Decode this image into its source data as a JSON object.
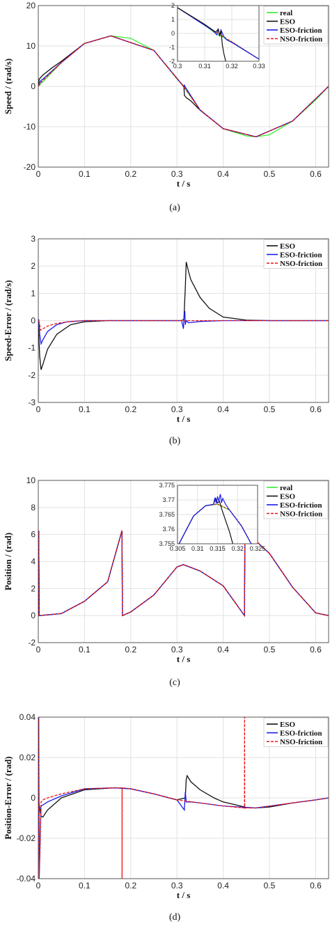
{
  "panels": [
    {
      "id": "a",
      "caption": "(a)",
      "ylabel": "Speed / (rad/s)",
      "xlabel": "t / s",
      "xlim": [
        0,
        0.628
      ],
      "ylim": [
        -20,
        20
      ],
      "xticks": [
        "0",
        "0.1",
        "0.2",
        "0.3",
        "0.4",
        "0.5",
        "0.6"
      ],
      "yticks": [
        "-20",
        "-10",
        "0",
        "10",
        "20"
      ],
      "legend": [
        "real",
        "ESO",
        "ESO-friction",
        "NSO-friction"
      ],
      "inset": {
        "xlim": [
          0.3,
          0.33
        ],
        "ylim": [
          -2,
          2
        ],
        "xticks": [
          "0.3",
          "0.31",
          "0.32",
          "0.33"
        ],
        "yticks": [
          "-2",
          "-1",
          "0",
          "1",
          "2"
        ]
      }
    },
    {
      "id": "b",
      "caption": "(b)",
      "ylabel": "Speed-Error / (rad/s)",
      "xlabel": "t / s",
      "xlim": [
        0,
        0.628
      ],
      "ylim": [
        -3,
        3
      ],
      "xticks": [
        "0",
        "0.1",
        "0.2",
        "0.3",
        "0.4",
        "0.5",
        "0.6"
      ],
      "yticks": [
        "-3",
        "-2",
        "-1",
        "0",
        "1",
        "2",
        "3"
      ],
      "legend": [
        "ESO",
        "ESO-friction",
        "NSO-friction"
      ]
    },
    {
      "id": "c",
      "caption": "(c)",
      "ylabel": "Position / (rad)",
      "xlabel": "t / s",
      "xlim": [
        0,
        0.628
      ],
      "ylim": [
        -2,
        10
      ],
      "xticks": [
        "0",
        "0.1",
        "0.2",
        "0.3",
        "0.4",
        "0.5",
        "0.6"
      ],
      "yticks": [
        "-2",
        "0",
        "2",
        "4",
        "6",
        "8",
        "10"
      ],
      "legend": [
        "real",
        "ESO",
        "ESO-friction",
        "NSO-friction"
      ],
      "inset": {
        "xlim": [
          0.305,
          0.325
        ],
        "ylim": [
          3.755,
          3.775
        ],
        "xticks": [
          "0.305",
          "0.31",
          "0.315",
          "0.32",
          "0.325"
        ],
        "yticks": [
          "3.755",
          "3.76",
          "3.765",
          "3.77",
          "3.775"
        ]
      }
    },
    {
      "id": "d",
      "caption": "(d)",
      "ylabel": "Position-Error / (rad)",
      "xlabel": "t / s",
      "xlim": [
        0,
        0.628
      ],
      "ylim": [
        -0.04,
        0.04
      ],
      "xticks": [
        "0",
        "0.1",
        "0.2",
        "0.3",
        "0.4",
        "0.5",
        "0.6"
      ],
      "yticks": [
        "-0.04",
        "-0.02",
        "0",
        "0.02",
        "0.04"
      ],
      "legend": [
        "ESO",
        "ESO-friction",
        "NSO-friction"
      ]
    }
  ],
  "colors": {
    "real": "#33ee33",
    "ESO": "#111111",
    "ESO-friction": "#1a1aee",
    "NSO-friction": "#ee1111",
    "grid": "#e2e2e2"
  },
  "chart_data": [
    {
      "type": "line",
      "ylabel": "Speed / (rad/s)",
      "xlabel": "t / s",
      "xlim": [
        0,
        0.628
      ],
      "ylim": [
        -20,
        20
      ],
      "grid": true,
      "legend_position": "top-right",
      "series": [
        {
          "name": "real",
          "x": [
            0,
            0.05,
            0.1,
            0.157,
            0.2,
            0.25,
            0.3,
            0.314,
            0.35,
            0.4,
            0.45,
            0.471,
            0.5,
            0.55,
            0.6,
            0.628
          ],
          "y": [
            0,
            5.88,
            10.62,
            12.5,
            11.9,
            8.9,
            1.85,
            0,
            -5.84,
            -10.48,
            -12.29,
            -12.5,
            -12.0,
            -8.6,
            -3.36,
            0
          ]
        },
        {
          "name": "ESO",
          "x": [
            0,
            0.002,
            0.01,
            0.03,
            0.05,
            0.1,
            0.157,
            0.25,
            0.31,
            0.315,
            0.316,
            0.318,
            0.32,
            0.33,
            0.35,
            0.4,
            0.471,
            0.55,
            0.628
          ],
          "y": [
            0,
            1.8,
            2.8,
            4.6,
            6.2,
            10.62,
            12.5,
            8.9,
            0.6,
            0.0,
            -2.2,
            -2.5,
            -2.8,
            -3.6,
            -5.9,
            -10.48,
            -12.5,
            -8.6,
            0
          ]
        },
        {
          "name": "ESO-friction",
          "x": [
            0,
            0.005,
            0.01,
            0.05,
            0.1,
            0.157,
            0.25,
            0.314,
            0.316,
            0.318,
            0.35,
            0.4,
            0.471,
            0.55,
            0.628
          ],
          "y": [
            0,
            1.4,
            1.8,
            5.9,
            10.62,
            12.5,
            8.9,
            0,
            0.3,
            -0.2,
            -5.84,
            -10.48,
            -12.5,
            -8.6,
            0
          ]
        },
        {
          "name": "NSO-friction",
          "x": [
            0,
            0.005,
            0.01,
            0.05,
            0.1,
            0.157,
            0.25,
            0.314,
            0.35,
            0.4,
            0.471,
            0.55,
            0.628
          ],
          "y": [
            0,
            0.9,
            1.5,
            5.88,
            10.62,
            12.5,
            8.9,
            0,
            -5.84,
            -10.48,
            -12.5,
            -8.6,
            0
          ]
        }
      ]
    },
    {
      "type": "line",
      "ylabel": "Speed-Error / (rad/s)",
      "xlabel": "t / s",
      "xlim": [
        0,
        0.628
      ],
      "ylim": [
        -3,
        3
      ],
      "grid": true,
      "legend_position": "top-right",
      "series": [
        {
          "name": "ESO",
          "x": [
            0,
            0.001,
            0.003,
            0.006,
            0.01,
            0.02,
            0.04,
            0.07,
            0.1,
            0.15,
            0.31,
            0.315,
            0.318,
            0.32,
            0.325,
            0.33,
            0.35,
            0.37,
            0.4,
            0.45,
            0.5,
            0.628
          ],
          "y": [
            0,
            -0.5,
            -1.3,
            -1.8,
            -1.6,
            -1.05,
            -0.5,
            -0.15,
            -0.04,
            0,
            0,
            0.05,
            1.2,
            2.15,
            1.8,
            1.5,
            0.85,
            0.45,
            0.13,
            0.02,
            0,
            0
          ]
        },
        {
          "name": "ESO-friction",
          "x": [
            0,
            0.001,
            0.003,
            0.006,
            0.01,
            0.02,
            0.04,
            0.06,
            0.1,
            0.31,
            0.314,
            0.315,
            0.317,
            0.318,
            0.32,
            0.325,
            0.35,
            0.4,
            0.628
          ],
          "y": [
            0,
            0.05,
            -0.5,
            -0.85,
            -0.7,
            -0.4,
            -0.15,
            -0.05,
            0,
            0,
            -0.3,
            0.1,
            0.35,
            -0.15,
            0.0,
            -0.08,
            -0.03,
            0,
            0
          ]
        },
        {
          "name": "NSO-friction",
          "x": [
            0,
            0.002,
            0.005,
            0.01,
            0.02,
            0.04,
            0.07,
            0.1,
            0.31,
            0.315,
            0.32,
            0.35,
            0.628
          ],
          "y": [
            0,
            -0.05,
            -0.35,
            -0.3,
            -0.2,
            -0.1,
            -0.03,
            0,
            0,
            -0.03,
            0,
            0,
            0
          ]
        }
      ]
    },
    {
      "type": "line",
      "ylabel": "Position / (rad)",
      "xlabel": "t / s",
      "xlim": [
        0,
        0.628
      ],
      "ylim": [
        -2,
        10
      ],
      "grid": true,
      "legend_position": "top-right",
      "series": [
        {
          "name": "real",
          "x": [
            0,
            0.001,
            0.002,
            0.05,
            0.1,
            0.15,
            0.181,
            0.182,
            0.2,
            0.25,
            0.3,
            0.314,
            0.35,
            0.4,
            0.446,
            0.447,
            0.5,
            0.55,
            0.6,
            0.628
          ],
          "y": [
            0,
            6.28,
            0,
            0.15,
            1.06,
            2.5,
            6.28,
            0,
            0.27,
            1.52,
            3.6,
            3.77,
            3.3,
            2.2,
            0,
            6.28,
            4.6,
            2.1,
            0.2,
            0
          ]
        },
        {
          "name": "ESO",
          "x": [
            0,
            0.001,
            0.002,
            0.05,
            0.1,
            0.15,
            0.181,
            0.182,
            0.2,
            0.25,
            0.3,
            0.314,
            0.35,
            0.4,
            0.446,
            0.447,
            0.5,
            0.55,
            0.6,
            0.628
          ],
          "y": [
            0,
            6.28,
            0,
            0.15,
            1.06,
            2.5,
            6.28,
            0,
            0.27,
            1.52,
            3.6,
            3.77,
            3.3,
            2.2,
            0,
            6.28,
            4.6,
            2.1,
            0.2,
            0
          ]
        },
        {
          "name": "ESO-friction",
          "x": [
            0,
            0.001,
            0.002,
            0.05,
            0.1,
            0.15,
            0.181,
            0.182,
            0.2,
            0.25,
            0.3,
            0.314,
            0.35,
            0.4,
            0.446,
            0.447,
            0.5,
            0.55,
            0.6,
            0.628
          ],
          "y": [
            0,
            6.28,
            0,
            0.15,
            1.06,
            2.5,
            6.28,
            0,
            0.27,
            1.52,
            3.6,
            3.77,
            3.3,
            2.2,
            0,
            6.28,
            4.6,
            2.1,
            0.2,
            0
          ]
        },
        {
          "name": "NSO-friction",
          "x": [
            0,
            0.001,
            0.002,
            0.05,
            0.1,
            0.15,
            0.181,
            0.182,
            0.2,
            0.25,
            0.3,
            0.314,
            0.35,
            0.4,
            0.446,
            0.447,
            0.5,
            0.55,
            0.6,
            0.628
          ],
          "y": [
            0,
            6.28,
            0,
            0.15,
            1.06,
            2.5,
            6.28,
            0,
            0.27,
            1.52,
            3.6,
            3.77,
            3.3,
            2.2,
            0,
            6.28,
            4.6,
            2.1,
            0.2,
            0
          ]
        }
      ]
    },
    {
      "type": "line",
      "ylabel": "Position-Error / (rad)",
      "xlabel": "t / s",
      "xlim": [
        0,
        0.628
      ],
      "ylim": [
        -0.04,
        0.04
      ],
      "grid": true,
      "legend_position": "top-right",
      "series": [
        {
          "name": "ESO",
          "x": [
            0,
            0.003,
            0.006,
            0.01,
            0.02,
            0.05,
            0.1,
            0.165,
            0.2,
            0.25,
            0.3,
            0.318,
            0.32,
            0.322,
            0.33,
            0.35,
            0.38,
            0.4,
            0.45,
            0.47,
            0.5,
            0.55,
            0.6,
            0.628
          ],
          "y": [
            0,
            -0.005,
            -0.009,
            -0.0095,
            -0.006,
            0.0,
            0.004,
            0.005,
            0.0045,
            0.002,
            -0.001,
            0.0,
            0.009,
            0.011,
            0.008,
            0.004,
            0.0,
            -0.002,
            -0.0047,
            -0.005,
            -0.0045,
            -0.0025,
            -0.001,
            0
          ]
        },
        {
          "name": "ESO-friction",
          "x": [
            0,
            0.001,
            0.002,
            0.006,
            0.01,
            0.02,
            0.05,
            0.1,
            0.165,
            0.2,
            0.25,
            0.3,
            0.316,
            0.318,
            0.32,
            0.33,
            0.35,
            0.4,
            0.47,
            0.55,
            0.6,
            0.628
          ],
          "y": [
            0,
            0.04,
            -0.04,
            -0.004,
            -0.0035,
            -0.002,
            0.001,
            0.0045,
            0.005,
            0.0045,
            0.002,
            -0.001,
            -0.006,
            0.003,
            -0.002,
            -0.002,
            -0.0025,
            -0.004,
            -0.005,
            -0.0025,
            -0.001,
            0
          ]
        },
        {
          "name": "NSO-friction",
          "x": [
            0,
            0.001,
            0.002,
            0.006,
            0.01,
            0.02,
            0.05,
            0.1,
            0.165,
            0.181,
            0.1812,
            0.1815,
            0.2,
            0.25,
            0.3,
            0.35,
            0.4,
            0.446,
            0.4462,
            0.4465,
            0.47,
            0.55,
            0.6,
            0.628
          ],
          "y": [
            0,
            0.04,
            -0.04,
            -0.002,
            -0.001,
            0.0,
            0.002,
            0.0045,
            0.005,
            0.005,
            -0.04,
            0.005,
            0.0045,
            0.002,
            -0.001,
            -0.0025,
            -0.004,
            -0.005,
            0.04,
            -0.005,
            -0.005,
            -0.0025,
            -0.001,
            0
          ]
        }
      ]
    }
  ]
}
